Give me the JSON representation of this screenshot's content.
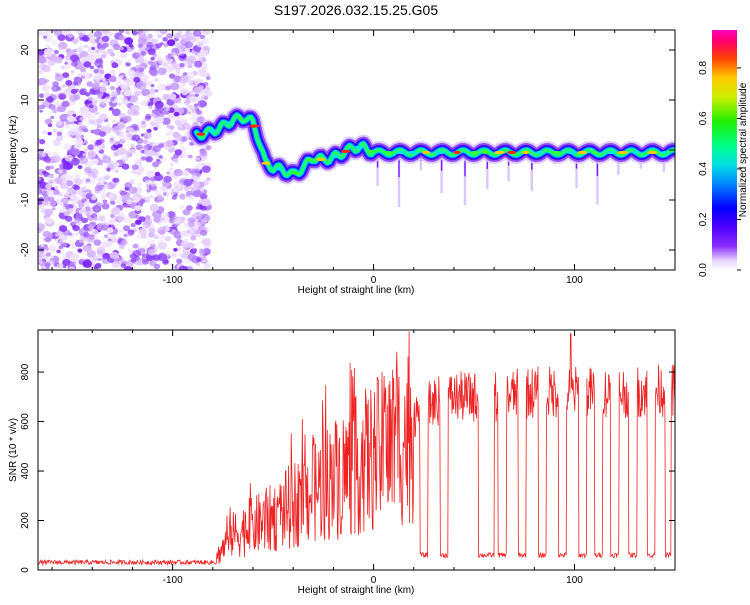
{
  "figure_title": "S197.2026.032.15.25.G05",
  "chart_data": [
    {
      "type": "heatmap",
      "title": "S197.2026.032.15.25.G05",
      "xlabel": "Height of straight line (km)",
      "ylabel": "Frequency (Hz)",
      "xlim": [
        -167,
        150
      ],
      "ylim": [
        -24,
        24
      ],
      "xticks": [
        -100,
        0,
        100
      ],
      "yticks": [
        -20,
        -10,
        0,
        10,
        20
      ],
      "colorbar": {
        "label": "Normalized spectral amplitude",
        "range": [
          0.0,
          0.95
        ],
        "ticks": [
          0.0,
          0.2,
          0.4,
          0.6,
          0.8
        ],
        "tick_labels": [
          "0.0",
          "0.2",
          "0.4",
          "0.6",
          "0.8"
        ]
      },
      "noise_region_x": [
        -167,
        -84
      ],
      "ridge": [
        {
          "x": -88,
          "y": 3.0
        },
        {
          "x": -82,
          "y": 3.5
        },
        {
          "x": -76,
          "y": 4.5
        },
        {
          "x": -70,
          "y": 6.0
        },
        {
          "x": -64,
          "y": 6.5
        },
        {
          "x": -60,
          "y": 5.5
        },
        {
          "x": -57,
          "y": 2.0
        },
        {
          "x": -54,
          "y": -2.5
        },
        {
          "x": -50,
          "y": -3.5
        },
        {
          "x": -45,
          "y": -4.0
        },
        {
          "x": -40,
          "y": -5.0
        },
        {
          "x": -35,
          "y": -3.5
        },
        {
          "x": -30,
          "y": -1.5
        },
        {
          "x": -25,
          "y": -2.0
        },
        {
          "x": -20,
          "y": -1.5
        },
        {
          "x": -15,
          "y": -0.5
        },
        {
          "x": -10,
          "y": 0.5
        },
        {
          "x": -5,
          "y": 0.5
        },
        {
          "x": 0,
          "y": -0.5
        },
        {
          "x": 150,
          "y": -0.5
        }
      ]
    },
    {
      "type": "line",
      "xlabel": "Height of straight line (km)",
      "ylabel": "SNR (10 * v/v)",
      "xlim": [
        -167,
        150
      ],
      "ylim": [
        0,
        970
      ],
      "xticks": [
        -100,
        0,
        100
      ],
      "yticks": [
        0,
        200,
        400,
        600,
        800
      ],
      "series": [
        {
          "name": "SNR",
          "color": "#ee2222",
          "trend": [
            [
              -167,
              22
            ],
            [
              -80,
              25
            ],
            [
              -76,
              90
            ],
            [
              -70,
              160
            ],
            [
              -60,
              200
            ],
            [
              -50,
              240
            ],
            [
              -40,
              300
            ],
            [
              -30,
              360
            ],
            [
              -20,
              420
            ],
            [
              -10,
              470
            ],
            [
              0,
              520
            ],
            [
              10,
              580
            ],
            [
              20,
              640
            ],
            [
              30,
              700
            ],
            [
              40,
              720
            ],
            [
              60,
              720
            ],
            [
              80,
              740
            ],
            [
              100,
              740
            ],
            [
              120,
              740
            ],
            [
              150,
              750
            ]
          ],
          "dropouts": [
            [
              23,
              27
            ],
            [
              33,
              37
            ],
            [
              52,
              60
            ],
            [
              62,
              66
            ],
            [
              72,
              76
            ],
            [
              82,
              86
            ],
            [
              92,
              96
            ],
            [
              102,
              106
            ],
            [
              110,
              114
            ],
            [
              118,
              122
            ],
            [
              127,
              131
            ],
            [
              136,
              140
            ],
            [
              145,
              148
            ]
          ],
          "dropout_level": 60,
          "max_value": 955,
          "max_at_x": 98
        }
      ]
    }
  ]
}
